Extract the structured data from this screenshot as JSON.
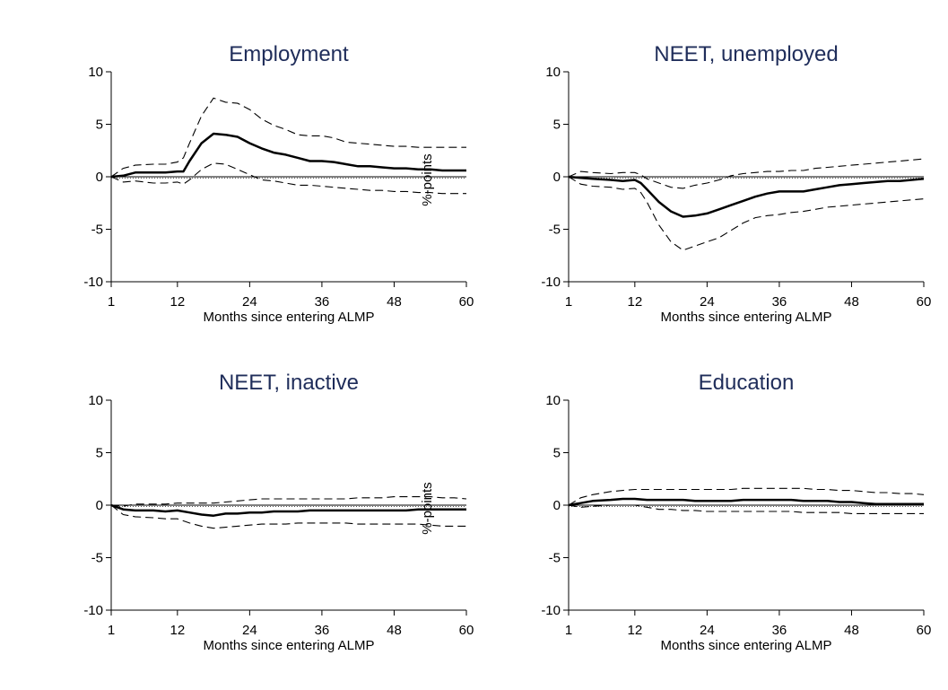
{
  "chart_data": [
    {
      "type": "line",
      "title": "Employment",
      "xlabel": "Months since entering ALMP",
      "ylabel": "%-points",
      "xlim": [
        1,
        60
      ],
      "ylim": [
        -10,
        10
      ],
      "xticks": [
        1,
        12,
        24,
        36,
        48,
        60
      ],
      "yticks": [
        -10,
        -5,
        0,
        5,
        10
      ],
      "x": [
        1,
        3,
        5,
        8,
        10,
        12,
        13,
        14,
        16,
        18,
        20,
        22,
        24,
        26,
        28,
        30,
        32,
        34,
        36,
        38,
        40,
        42,
        44,
        46,
        48,
        50,
        52,
        54,
        56,
        58,
        60
      ],
      "series": [
        {
          "role": "estimate",
          "values": [
            0,
            0.1,
            0.4,
            0.4,
            0.4,
            0.5,
            0.5,
            1.5,
            3.2,
            4.1,
            4.0,
            3.8,
            3.2,
            2.7,
            2.3,
            2.1,
            1.8,
            1.5,
            1.5,
            1.4,
            1.2,
            1.0,
            1.0,
            0.9,
            0.8,
            0.8,
            0.7,
            0.7,
            0.6,
            0.6,
            0.6
          ]
        },
        {
          "role": "upper",
          "values": [
            0,
            0.8,
            1.1,
            1.2,
            1.2,
            1.4,
            1.8,
            3.2,
            5.8,
            7.5,
            7.1,
            7.0,
            6.4,
            5.5,
            4.9,
            4.5,
            4.0,
            3.9,
            3.9,
            3.7,
            3.3,
            3.2,
            3.1,
            3.0,
            2.9,
            2.9,
            2.8,
            2.8,
            2.8,
            2.8,
            2.8
          ]
        },
        {
          "role": "lower",
          "values": [
            0,
            -0.5,
            -0.4,
            -0.6,
            -0.6,
            -0.5,
            -0.7,
            -0.3,
            0.7,
            1.3,
            1.2,
            0.7,
            0.2,
            -0.3,
            -0.4,
            -0.6,
            -0.8,
            -0.8,
            -0.9,
            -1.0,
            -1.1,
            -1.2,
            -1.3,
            -1.3,
            -1.4,
            -1.4,
            -1.5,
            -1.5,
            -1.6,
            -1.6,
            -1.6
          ]
        }
      ]
    },
    {
      "type": "line",
      "title": "NEET, unemployed",
      "xlabel": "Months since entering ALMP",
      "ylabel": "",
      "xlim": [
        1,
        60
      ],
      "ylim": [
        -10,
        10
      ],
      "xticks": [
        1,
        12,
        24,
        36,
        48,
        60
      ],
      "yticks": [
        -10,
        -5,
        0,
        5,
        10
      ],
      "x": [
        1,
        3,
        5,
        8,
        10,
        12,
        13,
        14,
        16,
        18,
        20,
        22,
        24,
        26,
        28,
        30,
        32,
        34,
        36,
        38,
        40,
        42,
        44,
        46,
        48,
        50,
        52,
        54,
        56,
        58,
        60
      ],
      "series": [
        {
          "role": "estimate",
          "values": [
            0,
            -0.1,
            -0.2,
            -0.3,
            -0.4,
            -0.3,
            -0.6,
            -1.2,
            -2.4,
            -3.3,
            -3.8,
            -3.7,
            -3.5,
            -3.1,
            -2.7,
            -2.3,
            -1.9,
            -1.6,
            -1.4,
            -1.4,
            -1.4,
            -1.2,
            -1.0,
            -0.8,
            -0.7,
            -0.6,
            -0.5,
            -0.4,
            -0.4,
            -0.3,
            -0.2
          ]
        },
        {
          "role": "upper",
          "values": [
            0,
            0.5,
            0.4,
            0.3,
            0.4,
            0.4,
            0.2,
            -0.2,
            -0.6,
            -1.0,
            -1.1,
            -0.8,
            -0.6,
            -0.3,
            0.1,
            0.3,
            0.4,
            0.5,
            0.5,
            0.6,
            0.6,
            0.8,
            0.9,
            1.0,
            1.1,
            1.2,
            1.3,
            1.4,
            1.5,
            1.6,
            1.7
          ]
        },
        {
          "role": "lower",
          "values": [
            0,
            -0.7,
            -0.9,
            -1.0,
            -1.2,
            -1.1,
            -1.5,
            -2.4,
            -4.6,
            -6.2,
            -7.0,
            -6.6,
            -6.2,
            -5.8,
            -5.1,
            -4.4,
            -3.9,
            -3.7,
            -3.6,
            -3.4,
            -3.3,
            -3.1,
            -2.9,
            -2.8,
            -2.7,
            -2.6,
            -2.5,
            -2.4,
            -2.3,
            -2.2,
            -2.1
          ]
        }
      ]
    },
    {
      "type": "line",
      "title": "NEET, inactive",
      "xlabel": "Months since entering ALMP",
      "ylabel": "%-points",
      "xlim": [
        1,
        60
      ],
      "ylim": [
        -10,
        10
      ],
      "xticks": [
        1,
        12,
        24,
        36,
        48,
        60
      ],
      "yticks": [
        -10,
        -5,
        0,
        5,
        10
      ],
      "x": [
        1,
        3,
        5,
        8,
        10,
        12,
        14,
        16,
        18,
        20,
        22,
        24,
        26,
        28,
        30,
        32,
        34,
        36,
        38,
        40,
        42,
        44,
        46,
        48,
        50,
        52,
        54,
        56,
        58,
        60
      ],
      "series": [
        {
          "role": "estimate",
          "values": [
            0,
            -0.4,
            -0.5,
            -0.5,
            -0.6,
            -0.5,
            -0.7,
            -0.9,
            -1.0,
            -0.8,
            -0.8,
            -0.7,
            -0.7,
            -0.6,
            -0.6,
            -0.6,
            -0.5,
            -0.5,
            -0.5,
            -0.5,
            -0.5,
            -0.5,
            -0.5,
            -0.5,
            -0.5,
            -0.4,
            -0.4,
            -0.4,
            -0.4,
            -0.4
          ]
        },
        {
          "role": "upper",
          "values": [
            0,
            -0.1,
            0.1,
            0.1,
            0.1,
            0.2,
            0.2,
            0.2,
            0.2,
            0.3,
            0.4,
            0.5,
            0.6,
            0.6,
            0.6,
            0.6,
            0.6,
            0.6,
            0.6,
            0.6,
            0.7,
            0.7,
            0.7,
            0.8,
            0.8,
            0.8,
            0.8,
            0.7,
            0.7,
            0.6
          ]
        },
        {
          "role": "lower",
          "values": [
            0,
            -0.9,
            -1.1,
            -1.2,
            -1.3,
            -1.3,
            -1.7,
            -2.0,
            -2.2,
            -2.1,
            -2.0,
            -1.9,
            -1.8,
            -1.8,
            -1.8,
            -1.7,
            -1.7,
            -1.7,
            -1.7,
            -1.7,
            -1.8,
            -1.8,
            -1.8,
            -1.8,
            -1.8,
            -1.8,
            -1.9,
            -2.0,
            -2.0,
            -2.0
          ]
        }
      ]
    },
    {
      "type": "line",
      "title": "Education",
      "xlabel": "Months since entering ALMP",
      "ylabel": "",
      "xlim": [
        1,
        60
      ],
      "ylim": [
        -10,
        10
      ],
      "xticks": [
        1,
        12,
        24,
        36,
        48,
        60
      ],
      "yticks": [
        -10,
        -5,
        0,
        5,
        10
      ],
      "x": [
        1,
        3,
        5,
        8,
        10,
        12,
        14,
        16,
        18,
        20,
        22,
        24,
        26,
        28,
        30,
        32,
        34,
        36,
        38,
        40,
        42,
        44,
        46,
        48,
        50,
        52,
        54,
        56,
        58,
        60
      ],
      "series": [
        {
          "role": "estimate",
          "values": [
            0,
            0.2,
            0.4,
            0.5,
            0.6,
            0.6,
            0.5,
            0.5,
            0.5,
            0.5,
            0.4,
            0.4,
            0.4,
            0.4,
            0.5,
            0.5,
            0.5,
            0.5,
            0.5,
            0.4,
            0.4,
            0.4,
            0.3,
            0.3,
            0.2,
            0.1,
            0.1,
            0.1,
            0.1,
            0.1
          ]
        },
        {
          "role": "upper",
          "values": [
            0,
            0.7,
            1.0,
            1.3,
            1.4,
            1.5,
            1.5,
            1.5,
            1.5,
            1.5,
            1.5,
            1.5,
            1.5,
            1.5,
            1.6,
            1.6,
            1.6,
            1.6,
            1.6,
            1.6,
            1.5,
            1.5,
            1.4,
            1.4,
            1.3,
            1.2,
            1.2,
            1.1,
            1.1,
            1.0
          ]
        },
        {
          "role": "lower",
          "values": [
            0,
            -0.2,
            -0.1,
            0,
            0,
            0,
            -0.2,
            -0.4,
            -0.4,
            -0.5,
            -0.5,
            -0.6,
            -0.6,
            -0.6,
            -0.6,
            -0.6,
            -0.6,
            -0.6,
            -0.6,
            -0.7,
            -0.7,
            -0.7,
            -0.7,
            -0.8,
            -0.8,
            -0.8,
            -0.8,
            -0.8,
            -0.8,
            -0.8
          ]
        }
      ]
    }
  ]
}
